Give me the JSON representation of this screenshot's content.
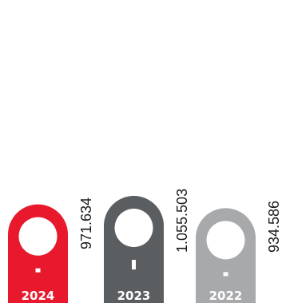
{
  "chart_data": {
    "type": "bar",
    "categories": [
      "2024",
      "2023",
      "2022"
    ],
    "values": [
      971634,
      1055503,
      934586
    ],
    "value_labels": [
      "971.634",
      "1.055.503",
      "934.586"
    ],
    "ylim": [
      0,
      1055503
    ],
    "title": "",
    "xlabel": "",
    "ylabel": "",
    "grid": false,
    "colors": [
      "#e8192c",
      "#5b5e61",
      "#a8a9ab"
    ],
    "label_color": "#ffffff"
  }
}
